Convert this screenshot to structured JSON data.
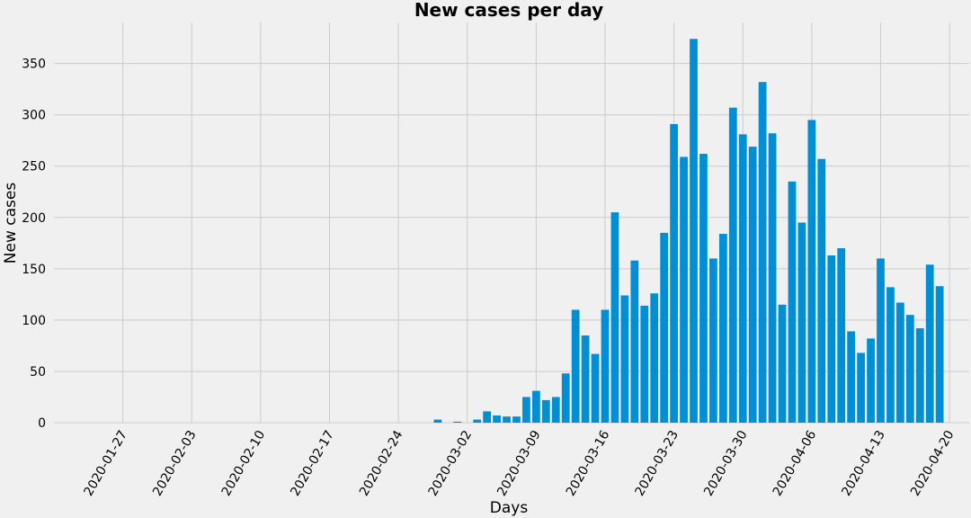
{
  "chart_data": {
    "type": "bar",
    "title": "New cases per day",
    "xlabel": "Days",
    "ylabel": "New cases",
    "ylim": [
      0,
      390
    ],
    "xlim": [
      "2020-01-20",
      "2020-04-22"
    ],
    "grid": true,
    "bar_color": "#008fd5",
    "background": "#f0f0f0",
    "grid_color": "#cbcbcb",
    "yticks": [
      0,
      50,
      100,
      150,
      200,
      250,
      300,
      350
    ],
    "xticks": [
      "2020-01-27",
      "2020-02-03",
      "2020-02-10",
      "2020-02-17",
      "2020-02-24",
      "2020-03-02",
      "2020-03-09",
      "2020-03-16",
      "2020-03-23",
      "2020-03-30",
      "2020-04-06",
      "2020-04-13",
      "2020-04-20"
    ],
    "x": [
      "2020-02-28",
      "2020-02-29",
      "2020-03-01",
      "2020-03-02",
      "2020-03-03",
      "2020-03-04",
      "2020-03-05",
      "2020-03-06",
      "2020-03-07",
      "2020-03-08",
      "2020-03-09",
      "2020-03-10",
      "2020-03-11",
      "2020-03-12",
      "2020-03-13",
      "2020-03-14",
      "2020-03-15",
      "2020-03-16",
      "2020-03-17",
      "2020-03-18",
      "2020-03-19",
      "2020-03-20",
      "2020-03-21",
      "2020-03-22",
      "2020-03-23",
      "2020-03-24",
      "2020-03-25",
      "2020-03-26",
      "2020-03-27",
      "2020-03-28",
      "2020-03-29",
      "2020-03-30",
      "2020-03-31",
      "2020-04-01",
      "2020-04-02",
      "2020-04-03",
      "2020-04-04",
      "2020-04-05",
      "2020-04-06",
      "2020-04-07",
      "2020-04-08",
      "2020-04-09",
      "2020-04-10",
      "2020-04-11",
      "2020-04-12",
      "2020-04-13",
      "2020-04-14",
      "2020-04-15",
      "2020-04-16",
      "2020-04-17",
      "2020-04-18",
      "2020-04-19",
      "2020-04-20"
    ],
    "values": [
      3,
      0,
      1,
      0,
      3,
      11,
      7,
      6,
      6,
      25,
      31,
      22,
      25,
      48,
      110,
      85,
      67,
      110,
      205,
      124,
      158,
      114,
      126,
      185,
      291,
      259,
      374,
      262,
      160,
      184,
      307,
      281,
      269,
      332,
      282,
      115,
      235,
      195,
      295,
      257,
      163,
      170,
      89,
      68,
      82,
      160,
      132,
      117,
      105,
      92,
      154,
      133,
      0
    ]
  }
}
